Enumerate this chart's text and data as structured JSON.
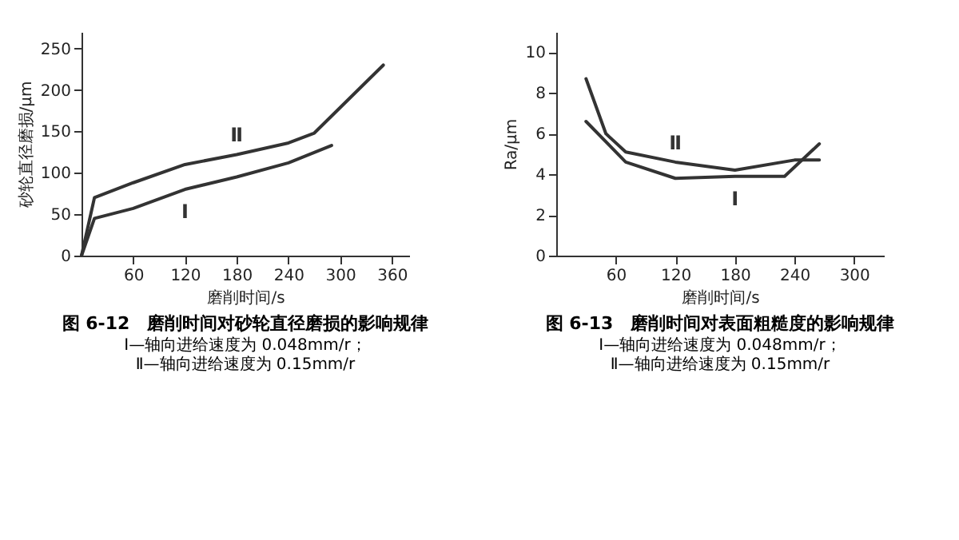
{
  "chart_data": [
    {
      "type": "line",
      "title": "图 6-12　磨削时间对砂轮直径磨损的影响规律",
      "xlabel": "磨削时间/s",
      "ylabel": "砂轮直径磨损/μm",
      "annotations": [
        "Ⅰ—轴向进给速度为 0.048mm/r；",
        "Ⅱ—轴向进给速度为 0.15mm/r"
      ],
      "xlim": [
        0,
        380
      ],
      "xticks": [
        60,
        120,
        180,
        240,
        300,
        360
      ],
      "ylim": [
        0,
        270
      ],
      "yticks": [
        0,
        50,
        100,
        150,
        200,
        250
      ],
      "grid": false,
      "marker": "none",
      "line_style": "solid",
      "series": [
        {
          "name": "Ⅰ",
          "color": "#333333",
          "x": [
            0,
            15,
            60,
            120,
            180,
            240,
            290
          ],
          "values": [
            0,
            45,
            57,
            80,
            95,
            112,
            133
          ]
        },
        {
          "name": "Ⅱ",
          "color": "#333333",
          "x": [
            0,
            15,
            60,
            120,
            180,
            240,
            270,
            350
          ],
          "values": [
            0,
            70,
            88,
            110,
            122,
            136,
            148,
            230
          ]
        }
      ]
    },
    {
      "type": "line",
      "title": "图 6-13　磨削时间对表面粗糙度的影响规律",
      "xlabel": "磨削时间/s",
      "ylabel": "Ra/μm",
      "annotations": [
        "Ⅰ—轴向进给速度为 0.048mm/r；",
        "Ⅱ—轴向进给速度为 0.15mm/r"
      ],
      "xlim": [
        0,
        330
      ],
      "xticks": [
        60,
        120,
        180,
        240,
        300
      ],
      "ylim": [
        0,
        11
      ],
      "yticks": [
        0,
        2,
        4,
        6,
        8,
        10
      ],
      "grid": false,
      "marker": "none",
      "line_style": "solid",
      "series": [
        {
          "name": "Ⅰ",
          "color": "#333333",
          "x": [
            30,
            70,
            120,
            180,
            230,
            265
          ],
          "values": [
            6.6,
            4.6,
            3.8,
            3.9,
            3.9,
            5.5
          ]
        },
        {
          "name": "Ⅱ",
          "color": "#333333",
          "x": [
            30,
            50,
            70,
            120,
            180,
            240,
            265
          ],
          "values": [
            8.7,
            6.0,
            5.1,
            4.6,
            4.2,
            4.7,
            4.7
          ]
        }
      ]
    }
  ]
}
